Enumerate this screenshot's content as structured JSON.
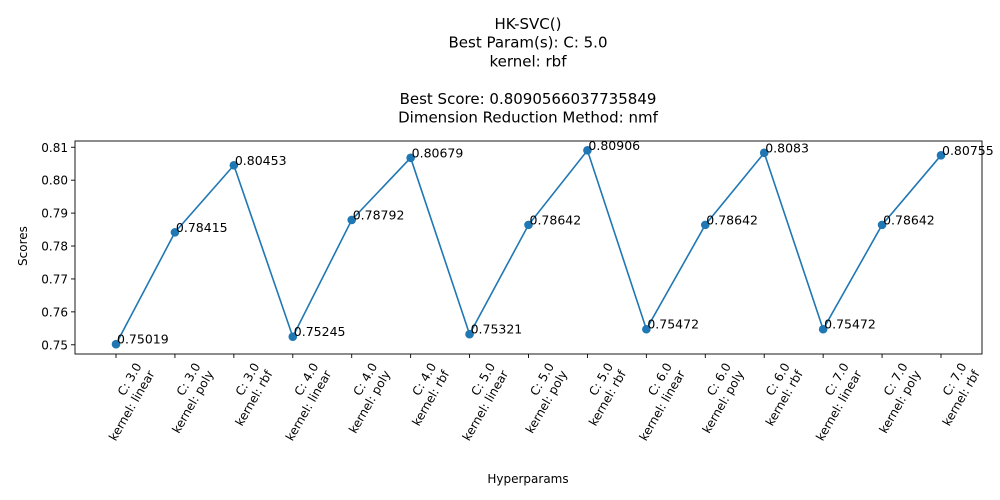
{
  "chart_data": {
    "type": "line",
    "title_lines": [
      "HK-SVC()",
      "Best Param(s): C: 5.0",
      "kernel: rbf",
      "",
      "Best Score: 0.8090566037735849",
      "Dimension Reduction Method: nmf"
    ],
    "xlabel": "Hyperparams",
    "ylabel": "Scores",
    "categories": [
      [
        "C: 3.0",
        "kernel: linear"
      ],
      [
        "C: 3.0",
        "kernel: poly"
      ],
      [
        "C: 3.0",
        "kernel: rbf"
      ],
      [
        "C: 4.0",
        "kernel: linear"
      ],
      [
        "C: 4.0",
        "kernel: poly"
      ],
      [
        "C: 4.0",
        "kernel: rbf"
      ],
      [
        "C: 5.0",
        "kernel: linear"
      ],
      [
        "C: 5.0",
        "kernel: poly"
      ],
      [
        "C: 5.0",
        "kernel: rbf"
      ],
      [
        "C: 6.0",
        "kernel: linear"
      ],
      [
        "C: 6.0",
        "kernel: poly"
      ],
      [
        "C: 6.0",
        "kernel: rbf"
      ],
      [
        "C: 7.0",
        "kernel: linear"
      ],
      [
        "C: 7.0",
        "kernel: poly"
      ],
      [
        "C: 7.0",
        "kernel: rbf"
      ]
    ],
    "values": [
      0.75019,
      0.78415,
      0.80453,
      0.75245,
      0.78792,
      0.80679,
      0.75321,
      0.78642,
      0.80906,
      0.75472,
      0.78642,
      0.8083,
      0.75472,
      0.78642,
      0.80755
    ],
    "data_labels": [
      "0.75019",
      "0.78415",
      "0.80453",
      "0.75245",
      "0.78792",
      "0.80679",
      "0.75321",
      "0.78642",
      "0.80906",
      "0.75472",
      "0.78642",
      "0.8083",
      "0.75472",
      "0.78642",
      "0.80755"
    ],
    "yticks": [
      0.75,
      0.76,
      0.77,
      0.78,
      0.79,
      0.8,
      0.81
    ],
    "ytick_labels": [
      "0.75",
      "0.76",
      "0.77",
      "0.78",
      "0.79",
      "0.80",
      "0.81"
    ],
    "ylim": [
      0.7472,
      0.8119
    ],
    "grid": false,
    "line_color": "#1f77b4",
    "marker": "circle"
  }
}
